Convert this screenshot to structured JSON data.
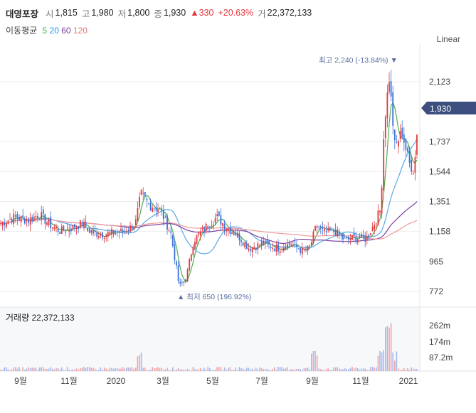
{
  "header": {
    "stock_name": "대영포장",
    "open_label": "시",
    "open": "1,815",
    "high_label": "고",
    "high": "1,980",
    "low_label": "저",
    "low": "1,800",
    "close_label": "종",
    "close": "1,930",
    "change": "▲330",
    "change_pct": "+20.63%",
    "volume_label": "거",
    "volume": "22,372,133"
  },
  "ma_legend": {
    "title": "이동평균",
    "items": [
      {
        "label": "5",
        "color": "#4caf50"
      },
      {
        "label": "20",
        "color": "#2196f3"
      },
      {
        "label": "60",
        "color": "#7b3fa0"
      },
      {
        "label": "120",
        "color": "#e57373"
      }
    ]
  },
  "scale_mode": "Linear",
  "price_badge": "1,930",
  "volume_panel": {
    "label": "거래량 22,372,133"
  },
  "chart_data": {
    "type": "candlestick",
    "price_axis": {
      "ticks": [
        "2,123",
        "1,737",
        "1,544",
        "1,351",
        "1,158",
        "965",
        "772"
      ],
      "range": [
        680,
        2320
      ]
    },
    "volume_axis": {
      "ticks": [
        "262m",
        "174m",
        "87.2m"
      ]
    },
    "x_ticks": [
      "9월",
      "11월",
      "2020",
      "3월",
      "5월",
      "7월",
      "9월",
      "11월",
      "2021"
    ],
    "annotations": {
      "max": "최고 2,240 (-13.84%) ▼",
      "min": "▲ 최저 650 (196.92%)"
    },
    "price_path_keypoints": [
      [
        0,
        1210
      ],
      [
        20,
        1250
      ],
      [
        40,
        1230
      ],
      [
        55,
        1270
      ],
      [
        70,
        1200
      ],
      [
        85,
        1160
      ],
      [
        100,
        1180
      ],
      [
        115,
        1210
      ],
      [
        130,
        1150
      ],
      [
        145,
        1140
      ],
      [
        160,
        1150
      ],
      [
        175,
        1160
      ],
      [
        190,
        1200
      ],
      [
        198,
        1400
      ],
      [
        210,
        1330
      ],
      [
        225,
        1300
      ],
      [
        240,
        1150
      ],
      [
        252,
        800
      ],
      [
        262,
        860
      ],
      [
        272,
        1100
      ],
      [
        282,
        1150
      ],
      [
        292,
        1200
      ],
      [
        305,
        1250
      ],
      [
        320,
        1180
      ],
      [
        335,
        1130
      ],
      [
        350,
        1050
      ],
      [
        370,
        1080
      ],
      [
        390,
        1050
      ],
      [
        410,
        1080
      ],
      [
        425,
        1030
      ],
      [
        435,
        1050
      ],
      [
        445,
        1200
      ],
      [
        455,
        1150
      ],
      [
        470,
        1160
      ],
      [
        485,
        1100
      ],
      [
        500,
        1120
      ],
      [
        515,
        1110
      ],
      [
        525,
        1200
      ],
      [
        535,
        1300
      ],
      [
        540,
        1850
      ],
      [
        547,
        2150
      ],
      [
        555,
        1700
      ],
      [
        565,
        1800
      ],
      [
        575,
        1600
      ],
      [
        582,
        1550
      ],
      [
        588,
        1930
      ]
    ]
  }
}
